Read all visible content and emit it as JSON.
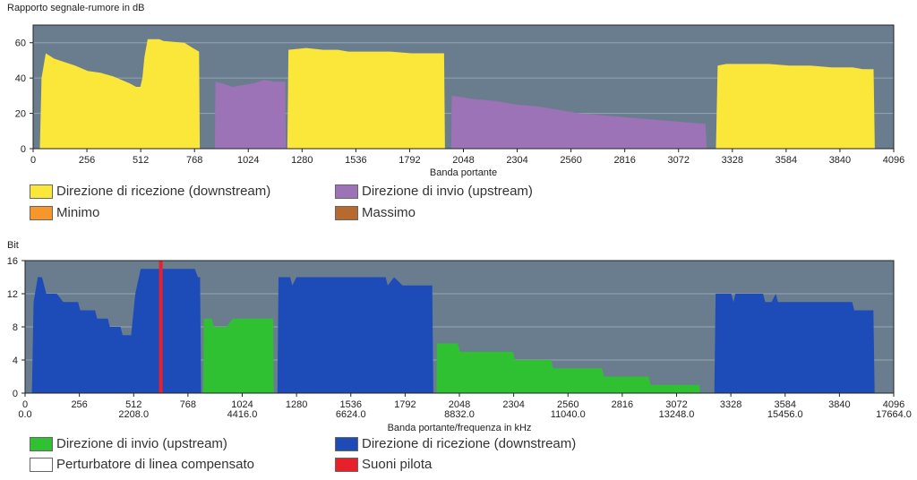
{
  "chart_data": [
    {
      "type": "area",
      "title": "Rapporto segnale-rumore in dB",
      "xlabel": "Banda portante",
      "ylabel": "",
      "xlim": [
        0,
        4096
      ],
      "ylim": [
        0,
        70
      ],
      "xticks": [
        0,
        256,
        512,
        768,
        1024,
        1280,
        1536,
        1792,
        2048,
        2304,
        2560,
        2816,
        3072,
        3328,
        3584,
        3840,
        4096
      ],
      "yticks": [
        0,
        20,
        40,
        60
      ],
      "background": "#6a7d8e",
      "grid_color": "#95a5b3",
      "series": [
        {
          "name": "Direzione di ricezione (downstream)",
          "color": "#fbe63a",
          "points": [
            [
              32,
              0
            ],
            [
              40,
              40
            ],
            [
              60,
              54
            ],
            [
              100,
              51
            ],
            [
              150,
              49
            ],
            [
              200,
              47
            ],
            [
              260,
              44
            ],
            [
              320,
              43
            ],
            [
              380,
              41
            ],
            [
              420,
              39
            ],
            [
              460,
              37
            ],
            [
              490,
              35
            ],
            [
              510,
              35
            ],
            [
              520,
              40
            ],
            [
              530,
              52
            ],
            [
              545,
              62
            ],
            [
              600,
              62
            ],
            [
              620,
              61
            ],
            [
              720,
              60
            ],
            [
              760,
              57
            ],
            [
              790,
              55
            ],
            [
              793,
              0
            ]
          ]
        },
        {
          "name": "Direzione di invio (upstream)",
          "color": "#9b73b6",
          "points": [
            [
              865,
              0
            ],
            [
              868,
              38
            ],
            [
              900,
              37
            ],
            [
              950,
              35
            ],
            [
              1000,
              36
            ],
            [
              1050,
              37
            ],
            [
              1100,
              39
            ],
            [
              1150,
              38
            ],
            [
              1180,
              38
            ],
            [
              1200,
              38
            ],
            [
              1203,
              0
            ]
          ]
        },
        {
          "name": "Direzione di ricezione (downstream)",
          "color": "#fbe63a",
          "points": [
            [
              1210,
              0
            ],
            [
              1215,
              56
            ],
            [
              1300,
              57
            ],
            [
              1380,
              56
            ],
            [
              1450,
              56
            ],
            [
              1500,
              55
            ],
            [
              1600,
              55
            ],
            [
              1700,
              55
            ],
            [
              1800,
              54
            ],
            [
              1900,
              54
            ],
            [
              1956,
              54
            ],
            [
              1960,
              0
            ]
          ]
        },
        {
          "name": "Direzione di invio (upstream)",
          "color": "#9b73b6",
          "points": [
            [
              1990,
              0
            ],
            [
              1992,
              30
            ],
            [
              2050,
              29
            ],
            [
              2100,
              28
            ],
            [
              2200,
              27
            ],
            [
              2300,
              25
            ],
            [
              2400,
              24
            ],
            [
              2500,
              22
            ],
            [
              2600,
              20
            ],
            [
              2700,
              19
            ],
            [
              2800,
              18
            ],
            [
              2900,
              17
            ],
            [
              3000,
              16
            ],
            [
              3100,
              15
            ],
            [
              3200,
              14
            ],
            [
              3206,
              0
            ]
          ]
        },
        {
          "name": "Direzione di ricezione (downstream)",
          "color": "#fbe63a",
          "points": [
            [
              3250,
              0
            ],
            [
              3258,
              47
            ],
            [
              3300,
              48
            ],
            [
              3500,
              48
            ],
            [
              3600,
              47
            ],
            [
              3700,
              47
            ],
            [
              3800,
              46
            ],
            [
              3900,
              46
            ],
            [
              3950,
              45
            ],
            [
              4000,
              45
            ],
            [
              4006,
              0
            ]
          ]
        }
      ],
      "legend": [
        {
          "label": "Direzione di ricezione (downstream)",
          "color": "#fbe63a"
        },
        {
          "label": "Direzione di invio (upstream)",
          "color": "#9b73b6"
        },
        {
          "label": "Minimo",
          "color": "#f7962b"
        },
        {
          "label": "Massimo",
          "color": "#b8692e"
        }
      ]
    },
    {
      "type": "area",
      "title": "Bit",
      "xlabel": "Banda portante/frequenza in kHz",
      "ylabel": "Bit",
      "xlim": [
        0,
        4096
      ],
      "ylim": [
        0,
        16
      ],
      "xticks": [
        0,
        256,
        512,
        768,
        1024,
        1280,
        1536,
        1792,
        2048,
        2304,
        2560,
        2816,
        3072,
        3328,
        3584,
        3840,
        4096
      ],
      "xticks_khz": [
        "0.0",
        "2208.0",
        "4416.0",
        "6624.0",
        "8832.0",
        "11040.0",
        "13248.0",
        "15456.0",
        "17664.0"
      ],
      "yticks": [
        0,
        4,
        8,
        12,
        16
      ],
      "background": "#6a7d8e",
      "grid_color": "#95a5b3",
      "pilot_tone_carrier": 640,
      "series": [
        {
          "name": "Direzione di ricezione (downstream)",
          "color": "#1d4cb8",
          "points": [
            [
              32,
              0
            ],
            [
              40,
              11
            ],
            [
              60,
              14
            ],
            [
              80,
              14
            ],
            [
              100,
              12
            ],
            [
              150,
              12
            ],
            [
              180,
              11
            ],
            [
              250,
              11
            ],
            [
              260,
              10
            ],
            [
              330,
              10
            ],
            [
              340,
              9
            ],
            [
              390,
              9
            ],
            [
              400,
              8
            ],
            [
              450,
              8
            ],
            [
              460,
              7
            ],
            [
              500,
              7
            ],
            [
              520,
              12
            ],
            [
              545,
              15
            ],
            [
              560,
              15
            ],
            [
              600,
              15
            ],
            [
              800,
              15
            ],
            [
              815,
              14
            ],
            [
              825,
              14
            ],
            [
              830,
              0
            ]
          ]
        },
        {
          "name": "Direzione di invio (upstream)",
          "color": "#2fc132",
          "points": [
            [
              840,
              0
            ],
            [
              843,
              9
            ],
            [
              880,
              9
            ],
            [
              890,
              8
            ],
            [
              950,
              8
            ],
            [
              980,
              9
            ],
            [
              1170,
              9
            ],
            [
              1172,
              0
            ]
          ]
        },
        {
          "name": "Direzione di ricezione (downstream)",
          "color": "#1d4cb8",
          "points": [
            [
              1190,
              0
            ],
            [
              1195,
              14
            ],
            [
              1250,
              14
            ],
            [
              1260,
              13
            ],
            [
              1280,
              14
            ],
            [
              1700,
              14
            ],
            [
              1710,
              13
            ],
            [
              1740,
              14
            ],
            [
              1780,
              13
            ],
            [
              1920,
              13
            ],
            [
              1925,
              0
            ]
          ]
        },
        {
          "name": "Direzione di invio (upstream)",
          "color": "#2fc132",
          "points": [
            [
              1940,
              0
            ],
            [
              1942,
              6
            ],
            [
              2040,
              6
            ],
            [
              2050,
              5
            ],
            [
              2300,
              5
            ],
            [
              2310,
              4
            ],
            [
              2480,
              4
            ],
            [
              2490,
              3
            ],
            [
              2720,
              3
            ],
            [
              2730,
              2
            ],
            [
              2940,
              2
            ],
            [
              2950,
              1
            ],
            [
              3180,
              1
            ],
            [
              3182,
              0
            ]
          ]
        },
        {
          "name": "Direzione di ricezione (downstream)",
          "color": "#1d4cb8",
          "points": [
            [
              3250,
              0
            ],
            [
              3256,
              12
            ],
            [
              3330,
              12
            ],
            [
              3340,
              11
            ],
            [
              3350,
              12
            ],
            [
              3480,
              12
            ],
            [
              3490,
              11
            ],
            [
              3520,
              11
            ],
            [
              3540,
              12
            ],
            [
              3550,
              11
            ],
            [
              3900,
              11
            ],
            [
              3910,
              10
            ],
            [
              4000,
              10
            ],
            [
              4006,
              0
            ]
          ]
        }
      ],
      "legend": [
        {
          "label": "Direzione di invio (upstream)",
          "color": "#2fc132"
        },
        {
          "label": "Direzione di ricezione (downstream)",
          "color": "#1d4cb8"
        },
        {
          "label": "Perturbatore di linea compensato",
          "color": "#ffffff"
        },
        {
          "label": "Suoni pilota",
          "color": "#e8202a"
        }
      ]
    }
  ]
}
